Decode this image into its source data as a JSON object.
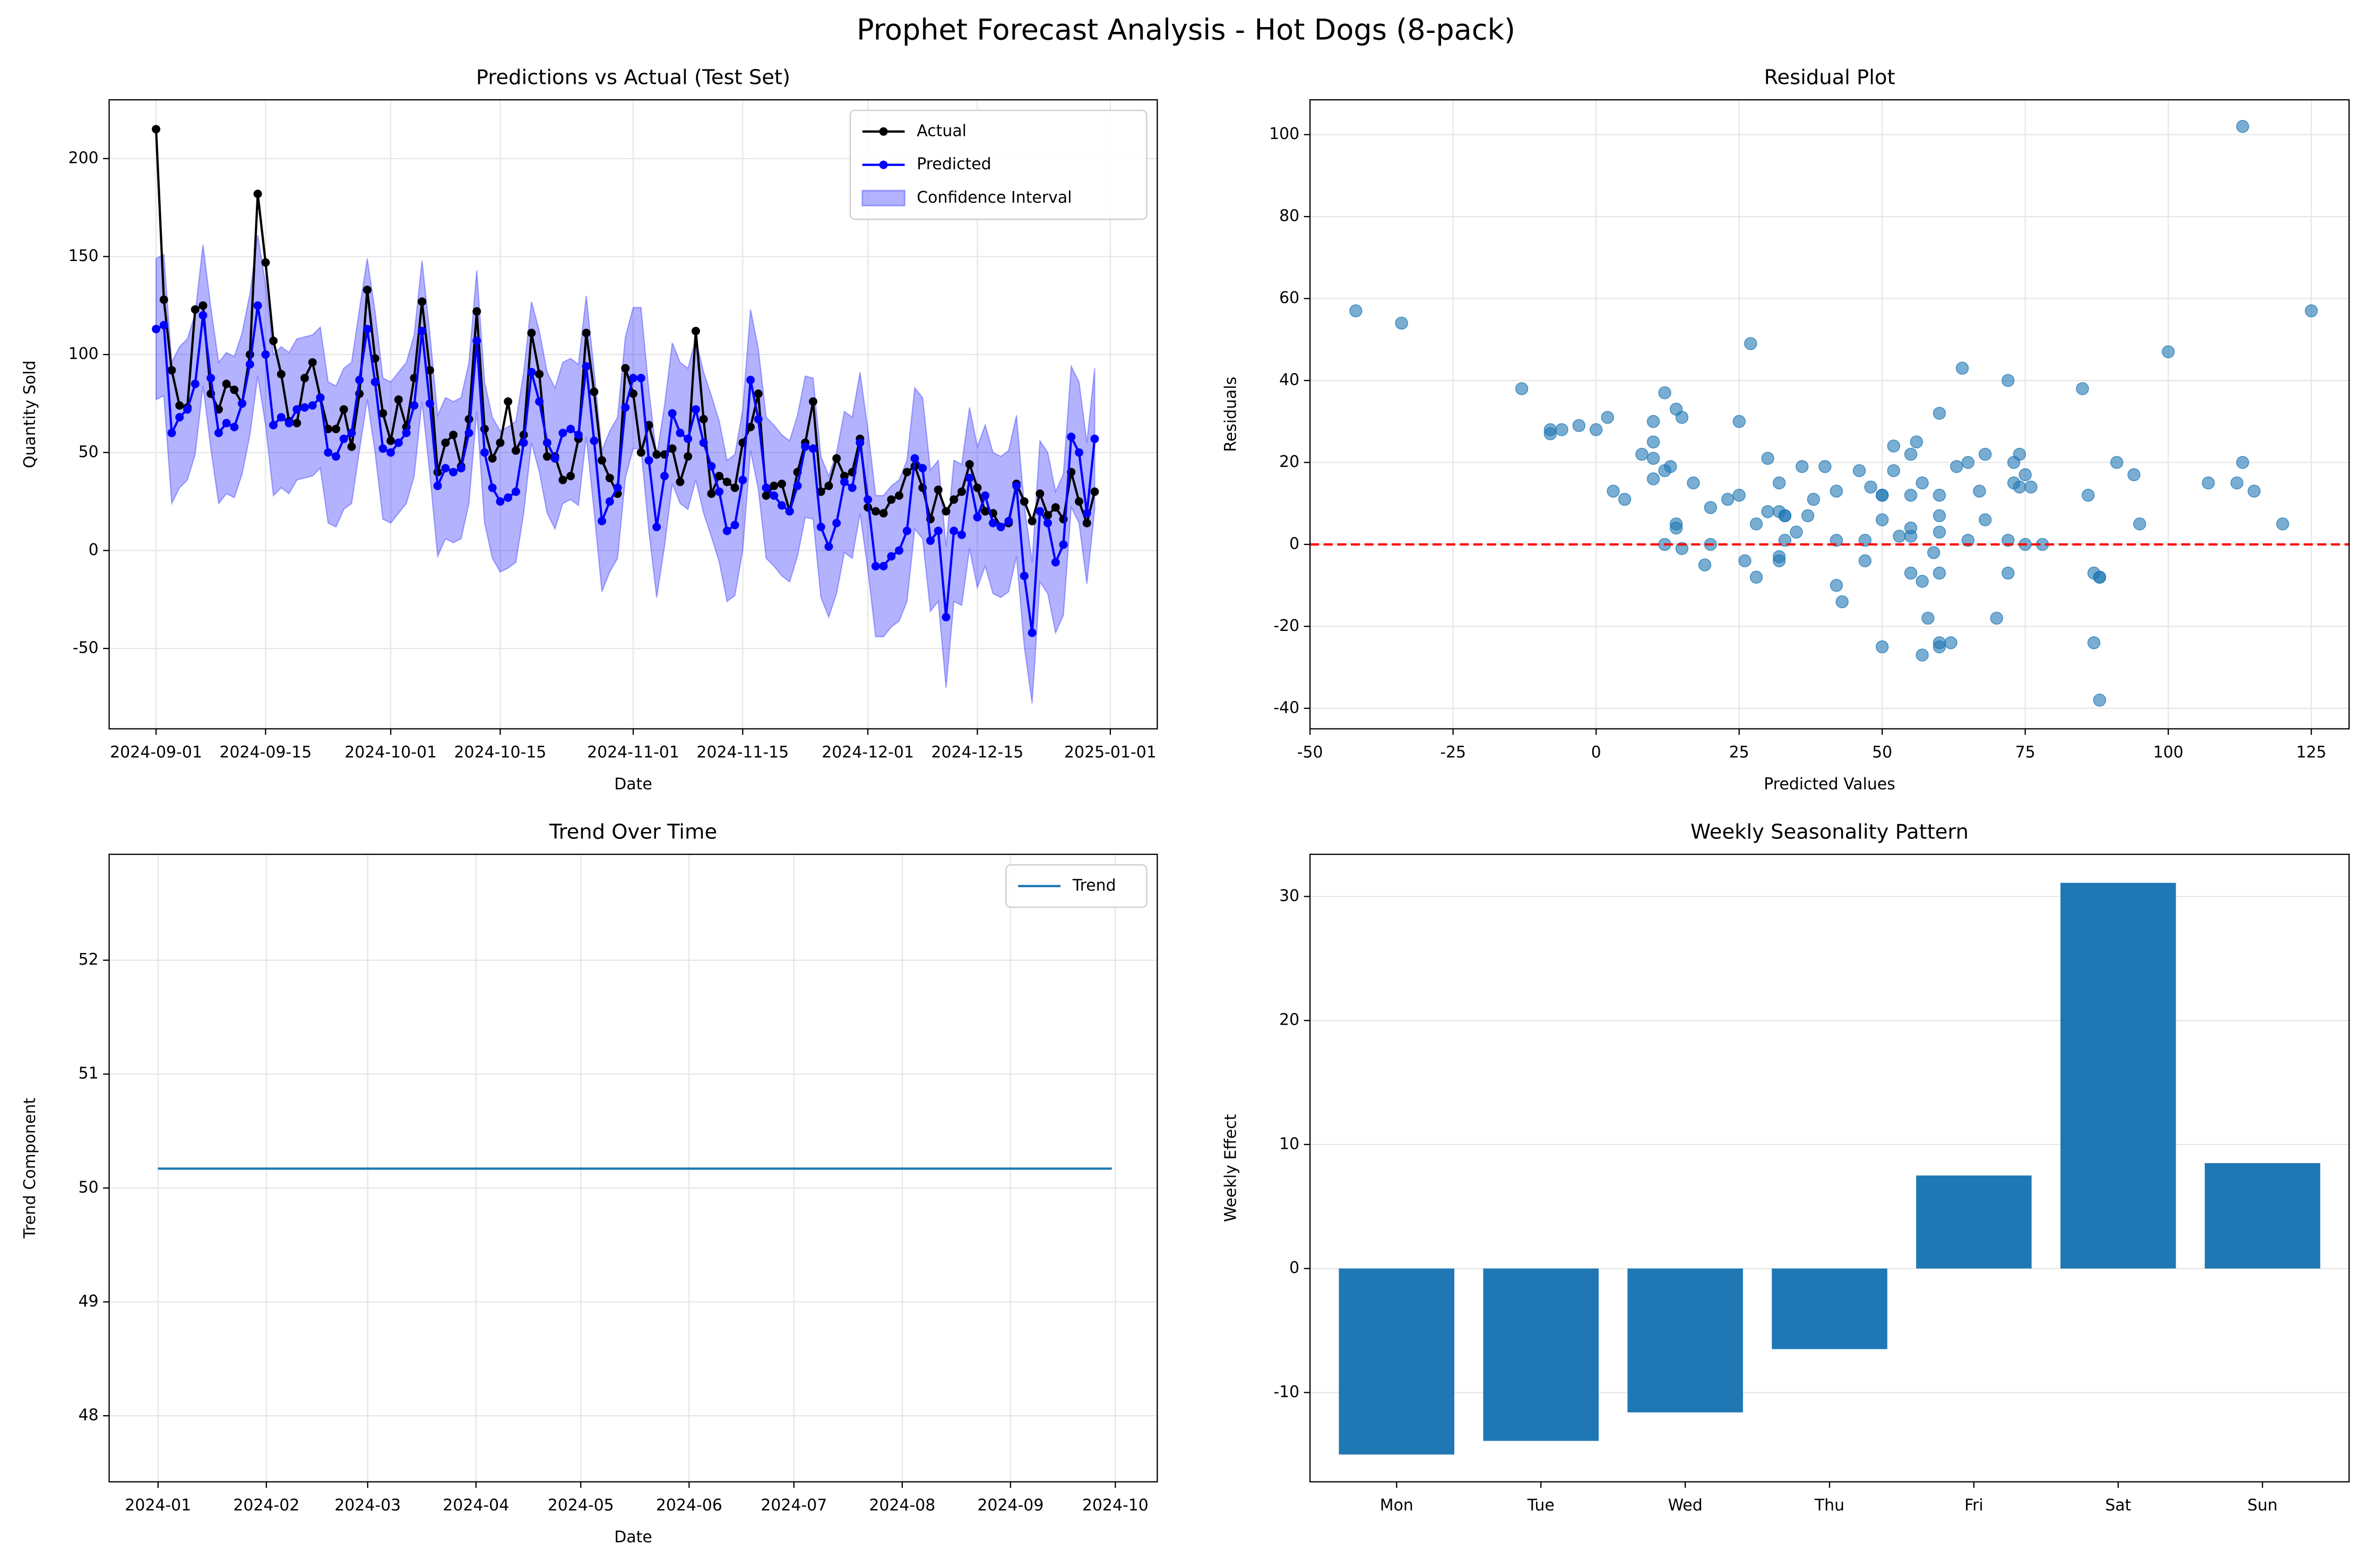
{
  "title": "Prophet Forecast Analysis - Hot Dogs (8-pack)",
  "chart_data": [
    {
      "type": "line",
      "title": "Predictions vs Actual (Test Set)",
      "xlabel": "Date",
      "ylabel": "Quantity Sold",
      "x": [
        "2024-09-01",
        "2024-09-02",
        "2024-09-03",
        "2024-09-04",
        "2024-09-05",
        "2024-09-06",
        "2024-09-07",
        "2024-09-08",
        "2024-09-09",
        "2024-09-10",
        "2024-09-11",
        "2024-09-12",
        "2024-09-13",
        "2024-09-14",
        "2024-09-15",
        "2024-09-16",
        "2024-09-17",
        "2024-09-18",
        "2024-09-19",
        "2024-09-20",
        "2024-09-21",
        "2024-09-22",
        "2024-09-23",
        "2024-09-24",
        "2024-09-25",
        "2024-09-26",
        "2024-09-27",
        "2024-09-28",
        "2024-09-29",
        "2024-09-30",
        "2024-10-01",
        "2024-10-02",
        "2024-10-03",
        "2024-10-04",
        "2024-10-05",
        "2024-10-06",
        "2024-10-07",
        "2024-10-08",
        "2024-10-09",
        "2024-10-10",
        "2024-10-11",
        "2024-10-12",
        "2024-10-13",
        "2024-10-14",
        "2024-10-15",
        "2024-10-16",
        "2024-10-17",
        "2024-10-18",
        "2024-10-19",
        "2024-10-20",
        "2024-10-21",
        "2024-10-22",
        "2024-10-23",
        "2024-10-24",
        "2024-10-25",
        "2024-10-26",
        "2024-10-27",
        "2024-10-28",
        "2024-10-29",
        "2024-10-30",
        "2024-10-31",
        "2024-11-01",
        "2024-11-02",
        "2024-11-03",
        "2024-11-04",
        "2024-11-05",
        "2024-11-06",
        "2024-11-07",
        "2024-11-08",
        "2024-11-09",
        "2024-11-10",
        "2024-11-11",
        "2024-11-12",
        "2024-11-13",
        "2024-11-14",
        "2024-11-15",
        "2024-11-16",
        "2024-11-17",
        "2024-11-18",
        "2024-11-19",
        "2024-11-20",
        "2024-11-21",
        "2024-11-22",
        "2024-11-23",
        "2024-11-24",
        "2024-11-25",
        "2024-11-26",
        "2024-11-27",
        "2024-11-28",
        "2024-11-29",
        "2024-11-30",
        "2024-12-01",
        "2024-12-02",
        "2024-12-03",
        "2024-12-04",
        "2024-12-05",
        "2024-12-06",
        "2024-12-07",
        "2024-12-08",
        "2024-12-09",
        "2024-12-10",
        "2024-12-11",
        "2024-12-12",
        "2024-12-13",
        "2024-12-14",
        "2024-12-15",
        "2024-12-16",
        "2024-12-17",
        "2024-12-18",
        "2024-12-19",
        "2024-12-20",
        "2024-12-21",
        "2024-12-22",
        "2024-12-23",
        "2024-12-24",
        "2024-12-25",
        "2024-12-26",
        "2024-12-27",
        "2024-12-28",
        "2024-12-29",
        "2024-12-30"
      ],
      "series": [
        {
          "name": "Actual",
          "color": "black",
          "values": [
            215,
            128,
            92,
            74,
            73,
            123,
            125,
            80,
            72,
            85,
            82,
            75,
            100,
            182,
            147,
            107,
            90,
            66,
            65,
            88,
            96,
            78,
            62,
            62,
            72,
            53,
            80,
            133,
            98,
            70,
            56,
            77,
            63,
            88,
            127,
            92,
            40,
            55,
            59,
            43,
            67,
            122,
            62,
            47,
            55,
            76,
            51,
            59,
            111,
            90,
            48,
            48,
            36,
            38,
            57,
            111,
            81,
            46,
            37,
            29,
            93,
            80,
            50,
            64,
            49,
            49,
            52,
            35,
            48,
            112,
            67,
            29,
            38,
            35,
            32,
            55,
            63,
            80,
            28,
            33,
            34,
            20,
            40,
            55,
            76,
            30,
            33,
            47,
            38,
            40,
            57,
            22,
            20,
            19,
            26,
            28,
            40,
            43,
            32,
            16,
            31,
            20,
            26,
            30,
            44,
            32,
            20,
            19,
            12,
            14,
            34,
            25,
            15,
            29,
            18,
            22,
            16,
            40,
            25,
            14,
            30
          ]
        },
        {
          "name": "Predicted",
          "color": "blue",
          "values": [
            113,
            115,
            60,
            68,
            72,
            85,
            120,
            88,
            60,
            65,
            63,
            75,
            95,
            125,
            100,
            64,
            68,
            65,
            72,
            73,
            74,
            78,
            50,
            48,
            57,
            60,
            87,
            113,
            86,
            52,
            50,
            55,
            60,
            74,
            112,
            75,
            33,
            42,
            40,
            42,
            60,
            107,
            50,
            32,
            25,
            27,
            30,
            55,
            91,
            76,
            55,
            47,
            60,
            62,
            59,
            94,
            56,
            15,
            25,
            32,
            73,
            88,
            88,
            46,
            12,
            38,
            70,
            60,
            57,
            72,
            55,
            43,
            30,
            10,
            13,
            36,
            87,
            67,
            32,
            28,
            23,
            20,
            33,
            53,
            52,
            12,
            2,
            14,
            35,
            32,
            55,
            26,
            -8,
            -8,
            -3,
            0,
            10,
            47,
            42,
            5,
            10,
            -34,
            10,
            8,
            37,
            17,
            28,
            14,
            12,
            15,
            33,
            -13,
            -42,
            20,
            14,
            -6,
            3,
            58,
            50,
            19,
            57
          ]
        }
      ],
      "band": {
        "name": "Confidence Interval",
        "color": "blue",
        "lower": [
          77,
          79,
          24,
          32,
          36,
          49,
          84,
          52,
          24,
          29,
          27,
          39,
          59,
          89,
          64,
          28,
          32,
          29,
          36,
          37,
          38,
          42,
          14,
          12,
          21,
          24,
          51,
          77,
          50,
          16,
          14,
          19,
          24,
          38,
          76,
          39,
          -3,
          6,
          4,
          6,
          24,
          71,
          14,
          -4,
          -11,
          -9,
          -6,
          19,
          55,
          40,
          19,
          11,
          24,
          26,
          23,
          58,
          20,
          -21,
          -11,
          -4,
          37,
          52,
          52,
          10,
          -24,
          2,
          34,
          24,
          21,
          36,
          19,
          7,
          -6,
          -26,
          -23,
          0,
          51,
          31,
          -4,
          -8,
          -13,
          -16,
          -3,
          17,
          16,
          -24,
          -34,
          -22,
          -1,
          -4,
          19,
          -10,
          -44,
          -44,
          -39,
          -36,
          -26,
          11,
          6,
          -31,
          -26,
          -70,
          -26,
          -28,
          1,
          -19,
          -8,
          -22,
          -24,
          -21,
          -3,
          -49,
          -78,
          -16,
          -22,
          -42,
          -33,
          22,
          14,
          -17,
          21
        ],
        "upper": [
          149,
          151,
          96,
          104,
          108,
          121,
          156,
          124,
          96,
          101,
          99,
          111,
          131,
          161,
          136,
          100,
          104,
          101,
          108,
          109,
          110,
          114,
          86,
          84,
          93,
          96,
          123,
          149,
          122,
          88,
          86,
          91,
          96,
          110,
          148,
          111,
          69,
          78,
          76,
          78,
          96,
          143,
          86,
          68,
          61,
          63,
          66,
          91,
          127,
          112,
          91,
          83,
          96,
          98,
          95,
          130,
          92,
          51,
          61,
          68,
          109,
          124,
          124,
          82,
          48,
          74,
          106,
          96,
          93,
          108,
          91,
          79,
          66,
          46,
          49,
          72,
          123,
          103,
          68,
          64,
          59,
          56,
          69,
          89,
          88,
          48,
          38,
          50,
          71,
          68,
          91,
          62,
          28,
          28,
          33,
          36,
          46,
          83,
          78,
          41,
          46,
          2,
          46,
          44,
          73,
          53,
          64,
          50,
          48,
          51,
          69,
          23,
          -6,
          56,
          50,
          30,
          39,
          94,
          86,
          55,
          93
        ]
      },
      "xlim": [
        "2024-08-26",
        "2025-01-07"
      ],
      "xticks": [
        "2024-09-01",
        "2024-09-15",
        "2024-10-01",
        "2024-10-15",
        "2024-11-01",
        "2024-11-15",
        "2024-12-01",
        "2024-12-15",
        "2025-01-01"
      ],
      "ylim": [
        -91,
        230
      ],
      "yticks": [
        -50,
        0,
        50,
        100,
        150,
        200
      ],
      "markers": true,
      "grid": true,
      "legend": "upper right"
    },
    {
      "type": "scatter",
      "title": "Residual Plot",
      "xlabel": "Predicted Values",
      "ylabel": "Residuals",
      "color": "#1f77b4",
      "x": [
        113,
        115,
        60,
        68,
        72,
        85,
        120,
        88,
        60,
        65,
        63,
        75,
        95,
        125,
        100,
        64,
        68,
        65,
        72,
        73,
        74,
        78,
        50,
        48,
        57,
        60,
        87,
        113,
        86,
        52,
        50,
        55,
        60,
        74,
        112,
        75,
        33,
        42,
        40,
        42,
        60,
        107,
        50,
        32,
        25,
        27,
        30,
        55,
        91,
        76,
        55,
        47,
        60,
        62,
        59,
        94,
        56,
        15,
        25,
        32,
        73,
        88,
        88,
        46,
        12,
        38,
        70,
        60,
        57,
        72,
        55,
        43,
        30,
        10,
        13,
        36,
        87,
        67,
        32,
        28,
        23,
        20,
        33,
        53,
        52,
        12,
        2,
        14,
        35,
        32,
        55,
        26,
        -8,
        -8,
        -3,
        0,
        10,
        47,
        42,
        5,
        10,
        -34,
        10,
        8,
        37,
        17,
        28,
        14,
        12,
        15,
        33,
        -13,
        -42,
        20,
        14,
        -6,
        3,
        58,
        50,
        19,
        57
      ],
      "values": [
        102,
        13,
        32,
        6,
        1,
        38,
        5,
        -8,
        12,
        20,
        19,
        0,
        5,
        57,
        47,
        43,
        22,
        1,
        -7,
        15,
        22,
        0,
        12,
        14,
        15,
        -7,
        -7,
        20,
        12,
        18,
        6,
        22,
        3,
        14,
        15,
        17,
        7,
        13,
        19,
        1,
        7,
        15,
        12,
        15,
        30,
        49,
        21,
        4,
        20,
        14,
        -7,
        1,
        -24,
        -24,
        -2,
        17,
        25,
        31,
        12,
        -3,
        20,
        -8,
        -38,
        18,
        37,
        11,
        -18,
        -25,
        -9,
        40,
        12,
        -14,
        8,
        25,
        19,
        19,
        -24,
        13,
        -4,
        5,
        11,
        0,
        7,
        2,
        24,
        18,
        31,
        33,
        3,
        8,
        2,
        -4,
        28,
        27,
        29,
        28,
        30,
        -4,
        -10,
        11,
        21,
        54,
        16,
        22,
        7,
        15,
        -8,
        5,
        0,
        -1,
        1,
        38,
        57,
        9,
        4,
        28,
        13,
        -18,
        -25,
        -5,
        -27
      ],
      "reference_line": {
        "value": 0,
        "color": "red",
        "style": "dashed"
      },
      "xlim": [
        -50,
        131.6
      ],
      "xticks": [
        -50,
        -25,
        0,
        25,
        50,
        75,
        100,
        125
      ],
      "ylim": [
        -45,
        108.5
      ],
      "yticks": [
        -40,
        -20,
        0,
        20,
        40,
        60,
        80,
        100
      ],
      "grid": true
    },
    {
      "type": "line",
      "title": "Trend Over Time",
      "xlabel": "Date",
      "ylabel": "Trend Component",
      "x": [
        "2024-01-01",
        "2024-09-30"
      ],
      "series": [
        {
          "name": "Trend",
          "color": "#1f77b4",
          "values": [
            50.17,
            50.17
          ]
        }
      ],
      "xlim": [
        "2023-12-18",
        "2024-10-13"
      ],
      "xticks": [
        {
          "value": "2024-01-01",
          "label": "2024-01"
        },
        {
          "value": "2024-02-01",
          "label": "2024-02"
        },
        {
          "value": "2024-03-01",
          "label": "2024-03"
        },
        {
          "value": "2024-04-01",
          "label": "2024-04"
        },
        {
          "value": "2024-05-01",
          "label": "2024-05"
        },
        {
          "value": "2024-06-01",
          "label": "2024-06"
        },
        {
          "value": "2024-07-01",
          "label": "2024-07"
        },
        {
          "value": "2024-08-01",
          "label": "2024-08"
        },
        {
          "value": "2024-09-01",
          "label": "2024-09"
        },
        {
          "value": "2024-10-01",
          "label": "2024-10"
        }
      ],
      "ylim": [
        47.42,
        52.93
      ],
      "yticks": [
        48,
        49,
        50,
        51,
        52
      ],
      "markers": false,
      "grid": true,
      "legend": "upper right"
    },
    {
      "type": "bar",
      "title": "Weekly Seasonality Pattern",
      "ylabel": "Weekly Effect",
      "color": "#1f77b4",
      "categories": [
        "Mon",
        "Tue",
        "Wed",
        "Thu",
        "Fri",
        "Sat",
        "Sun"
      ],
      "values": [
        -15.0,
        -13.9,
        -11.6,
        -6.5,
        7.5,
        31.1,
        8.5
      ],
      "ylim": [
        -17.2,
        33.4
      ],
      "yticks": [
        -10,
        0,
        10,
        20,
        30
      ],
      "grid": true
    }
  ]
}
